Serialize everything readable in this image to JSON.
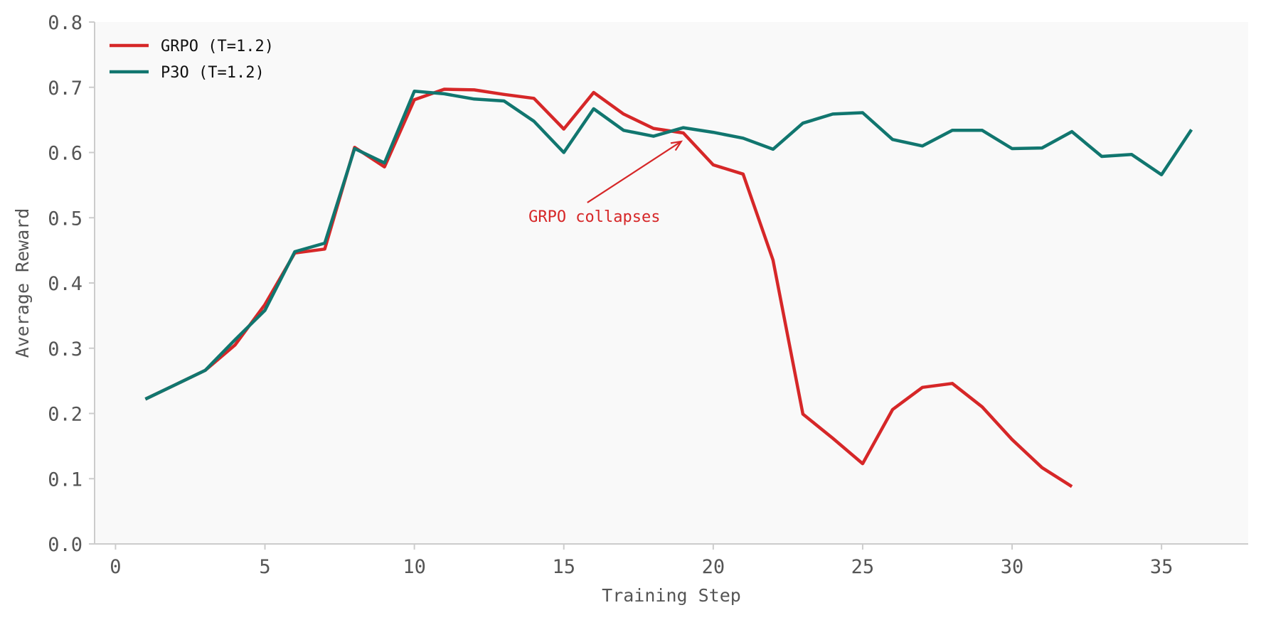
{
  "chart_data": {
    "type": "line",
    "title": "",
    "xlabel": "Training Step",
    "ylabel": "Average Reward",
    "xlim": [
      -0.7,
      37.9
    ],
    "ylim": [
      0.0,
      0.8
    ],
    "xticks": [
      0,
      5,
      10,
      15,
      20,
      25,
      30,
      35
    ],
    "yticks": [
      0.0,
      0.1,
      0.2,
      0.3,
      0.4,
      0.5,
      0.6,
      0.7,
      0.8
    ],
    "xtick_labels": [
      "0",
      "5",
      "10",
      "15",
      "20",
      "25",
      "30",
      "35"
    ],
    "ytick_labels": [
      "0.0",
      "0.1",
      "0.2",
      "0.3",
      "0.4",
      "0.5",
      "0.6",
      "0.7",
      "0.8"
    ],
    "grid": false,
    "legend_position": "top-left",
    "series": [
      {
        "name": "GRPO (T=1.2)",
        "color": "#d62728",
        "x": [
          1,
          2,
          3,
          4,
          5,
          6,
          7,
          8,
          9,
          10,
          11,
          12,
          13,
          14,
          15,
          16,
          17,
          18,
          19,
          20,
          21,
          22,
          23,
          24,
          25,
          26,
          27,
          28,
          29,
          30,
          31,
          32
        ],
        "y": [
          0.222,
          0.244,
          0.266,
          0.305,
          0.367,
          0.446,
          0.452,
          0.608,
          0.578,
          0.681,
          0.697,
          0.696,
          0.689,
          0.683,
          0.636,
          0.692,
          0.659,
          0.637,
          0.63,
          0.581,
          0.567,
          0.435,
          0.199,
          0.162,
          0.123,
          0.206,
          0.24,
          0.246,
          0.21,
          0.16,
          0.117,
          0.088
        ]
      },
      {
        "name": "P3O (T=1.2)",
        "color": "#11766f",
        "x": [
          1,
          2,
          3,
          4,
          5,
          6,
          7,
          8,
          9,
          10,
          11,
          12,
          13,
          14,
          15,
          16,
          17,
          18,
          19,
          20,
          21,
          22,
          23,
          24,
          25,
          26,
          27,
          28,
          29,
          30,
          31,
          32,
          33,
          34,
          35,
          36
        ],
        "y": [
          0.222,
          0.244,
          0.266,
          0.313,
          0.358,
          0.448,
          0.461,
          0.606,
          0.584,
          0.694,
          0.69,
          0.682,
          0.679,
          0.648,
          0.6,
          0.667,
          0.634,
          0.625,
          0.638,
          0.631,
          0.622,
          0.605,
          0.645,
          0.659,
          0.661,
          0.62,
          0.61,
          0.634,
          0.634,
          0.606,
          0.607,
          0.632,
          0.594,
          0.597,
          0.566,
          0.635
        ]
      }
    ],
    "annotations": [
      {
        "text": "GRPO collapses",
        "color": "#d62728",
        "arrow_to": {
          "x": 19,
          "y": 0.63
        }
      }
    ]
  }
}
